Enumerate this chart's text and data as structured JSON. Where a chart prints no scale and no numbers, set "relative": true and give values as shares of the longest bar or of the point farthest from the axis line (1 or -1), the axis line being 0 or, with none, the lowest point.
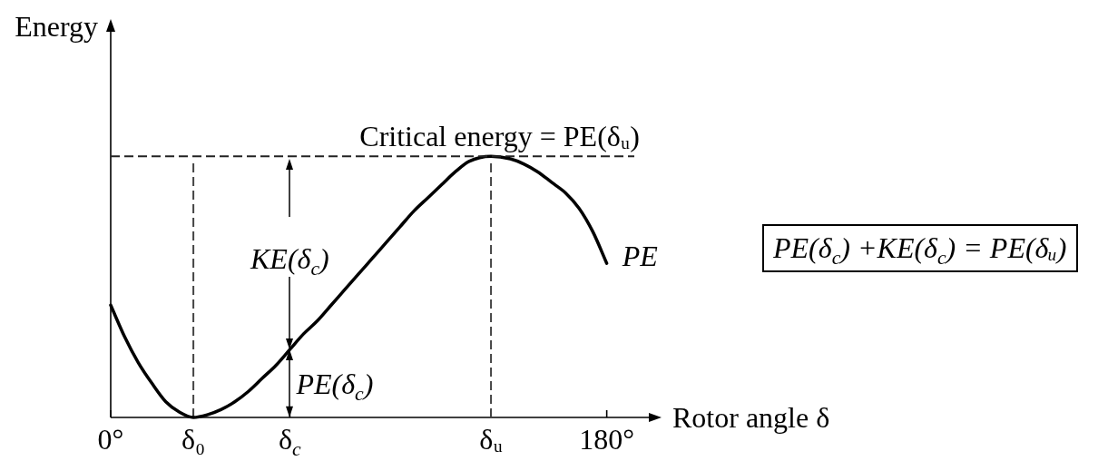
{
  "chart_data": {
    "type": "line",
    "relative": true,
    "xlabel": "Rotor angle δ",
    "ylabel": "Energy",
    "x": [
      0,
      5,
      10,
      15,
      20,
      25,
      30,
      35,
      40,
      45,
      50,
      55,
      60,
      65,
      70,
      75,
      80,
      85,
      90,
      95,
      100,
      105,
      110,
      115,
      120,
      125,
      130,
      138,
      145,
      150,
      155,
      160,
      165,
      170,
      175,
      180
    ],
    "series": [
      {
        "name": "PE",
        "color": "#000000",
        "values": [
          0.43,
          0.31,
          0.21,
          0.13,
          0.06,
          0.02,
          0,
          0.01,
          0.03,
          0.06,
          0.1,
          0.15,
          0.2,
          0.26,
          0.32,
          0.37,
          0.43,
          0.49,
          0.55,
          0.61,
          0.67,
          0.73,
          0.79,
          0.84,
          0.89,
          0.94,
          0.98,
          1,
          0.99,
          0.97,
          0.94,
          0.9,
          0.86,
          0.8,
          0.71,
          0.59
        ]
      }
    ],
    "xlim": [
      0,
      190
    ],
    "xticks": [
      {
        "value": 0,
        "label": "0°"
      },
      {
        "value": 30,
        "label": "δ₀"
      },
      {
        "value": 65,
        "label": "δ$_{c}$"
      },
      {
        "value": 138,
        "label": "δᵤ"
      },
      {
        "value": 180,
        "label": "180°"
      }
    ],
    "tick_labels": "x",
    "marker": "none",
    "ref_lines": [
      {
        "axis": "y",
        "value": 1,
        "label": "Critical energy = PE(δᵤ)",
        "line_style": "dashed",
        "color": "#222222"
      },
      {
        "axis": "x",
        "value": 30,
        "line_style": "dashed",
        "color": "#444444"
      },
      {
        "axis": "x",
        "value": 138,
        "line_style": "dashed",
        "color": "#444444"
      }
    ],
    "annotations": [
      {
        "text": "KE(δ$_{c}$)",
        "x": 65,
        "y": 0.26
      },
      {
        "text": "PE(δ$_{c}$)",
        "x": 65,
        "y": 0.26
      },
      "PE(δ$_{c}$) +KE(δ$_{c}$) = PE(δᵤ)"
    ]
  }
}
